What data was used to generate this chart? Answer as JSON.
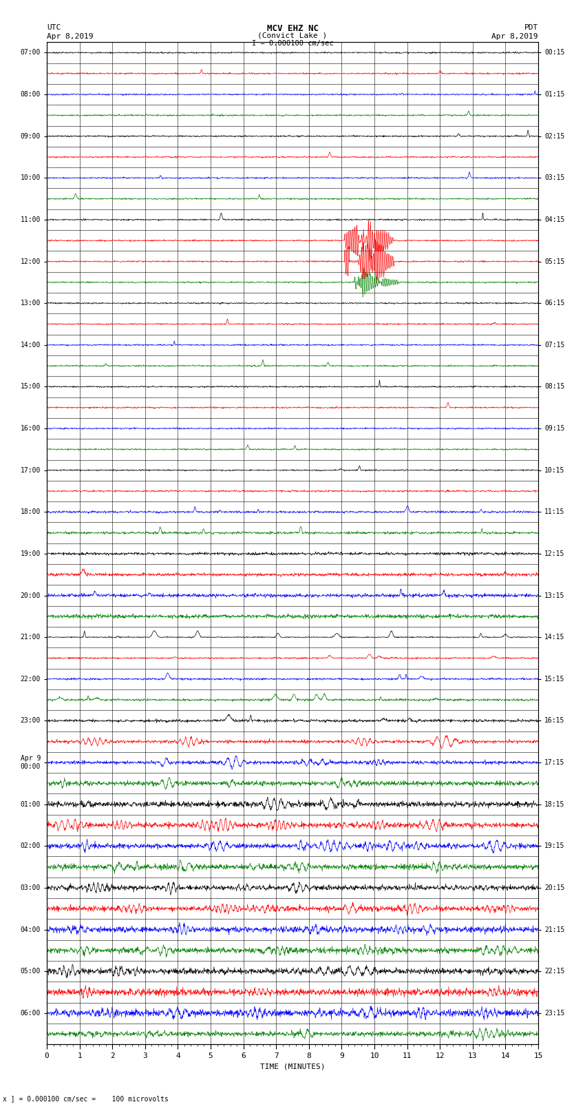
{
  "title_line1": "MCV EHZ NC",
  "title_line2": "(Convict Lake )",
  "title_line3": "I = 0.000100 cm/sec",
  "left_label_top": "UTC",
  "left_label_date": "Apr 8,2019",
  "right_label_top": "PDT",
  "right_label_date": "Apr 8,2019",
  "bottom_label": "TIME (MINUTES)",
  "scale_label": "x ] = 0.000100 cm/sec =    100 microvolts",
  "xlabel_ticks": [
    0,
    1,
    2,
    3,
    4,
    5,
    6,
    7,
    8,
    9,
    10,
    11,
    12,
    13,
    14,
    15
  ],
  "utc_times": [
    "07:00",
    "",
    "08:00",
    "",
    "09:00",
    "",
    "10:00",
    "",
    "11:00",
    "",
    "12:00",
    "",
    "13:00",
    "",
    "14:00",
    "",
    "15:00",
    "",
    "16:00",
    "",
    "17:00",
    "",
    "18:00",
    "",
    "19:00",
    "",
    "20:00",
    "",
    "21:00",
    "",
    "22:00",
    "",
    "23:00",
    "",
    "Apr 9\n00:00",
    "",
    "01:00",
    "",
    "02:00",
    "",
    "03:00",
    "",
    "04:00",
    "",
    "05:00",
    "",
    "06:00",
    ""
  ],
  "pdt_times": [
    "00:15",
    "",
    "01:15",
    "",
    "02:15",
    "",
    "03:15",
    "",
    "04:15",
    "",
    "05:15",
    "",
    "06:15",
    "",
    "07:15",
    "",
    "08:15",
    "",
    "09:15",
    "",
    "10:15",
    "",
    "11:15",
    "",
    "12:15",
    "",
    "13:15",
    "",
    "14:15",
    "",
    "15:15",
    "",
    "16:15",
    "",
    "17:15",
    "",
    "18:15",
    "",
    "19:15",
    "",
    "20:15",
    "",
    "21:15",
    "",
    "22:15",
    "",
    "23:15",
    ""
  ],
  "n_rows": 48,
  "line_colors_cycle": [
    "#000000",
    "#ff0000",
    "#0000ff",
    "#008000"
  ],
  "plot_bg": "#ffffff"
}
